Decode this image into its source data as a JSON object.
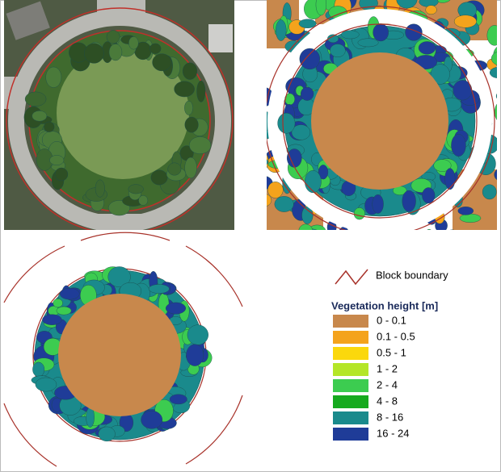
{
  "legend": {
    "boundary": {
      "label": "Block boundary",
      "color": "#a8322a"
    },
    "title": "Vegetation height [m]",
    "classes": [
      {
        "label": "0 - 0.1",
        "color": "#c8884c"
      },
      {
        "label": "0.1 - 0.5",
        "color": "#f4a31c"
      },
      {
        "label": "0.5 - 1",
        "color": "#fbd80c"
      },
      {
        "label": "1 - 2",
        "color": "#b4e628"
      },
      {
        "label": "2 - 4",
        "color": "#3ccc50"
      },
      {
        "label": "4 - 8",
        "color": "#16aa1e"
      },
      {
        "label": "8 - 16",
        "color": "#1a8a8c"
      },
      {
        "label": "16 - 24",
        "color": "#1f3c98"
      }
    ]
  }
}
